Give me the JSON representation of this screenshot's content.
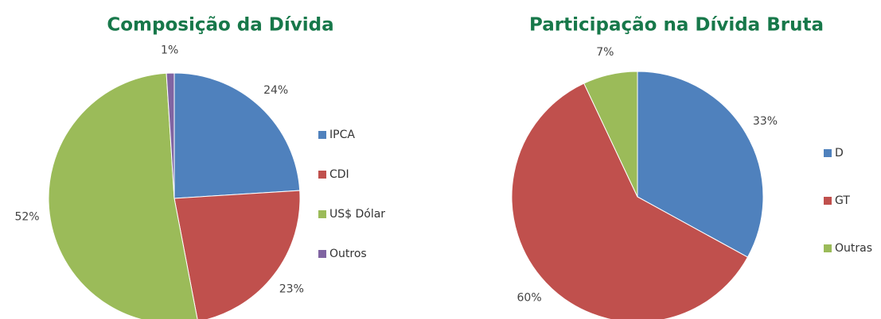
{
  "chart_data": [
    {
      "type": "pie",
      "title": "Composição da Dívida",
      "categories": [
        "IPCA",
        "CDI",
        "US$ Dólar",
        "Outros"
      ],
      "values": [
        24,
        23,
        52,
        1
      ],
      "value_labels": [
        "24%",
        "23%",
        "52%",
        "1%"
      ],
      "colors": [
        "#4f81bd",
        "#c0504d",
        "#9bbb59",
        "#8064a2"
      ]
    },
    {
      "type": "pie",
      "title": "Participação na Dívida Bruta",
      "categories": [
        "D",
        "GT",
        "Outras"
      ],
      "values": [
        33,
        60,
        7
      ],
      "value_labels": [
        "33%",
        "60%",
        "7%"
      ],
      "colors": [
        "#4f81bd",
        "#c0504d",
        "#9bbb59"
      ]
    }
  ]
}
